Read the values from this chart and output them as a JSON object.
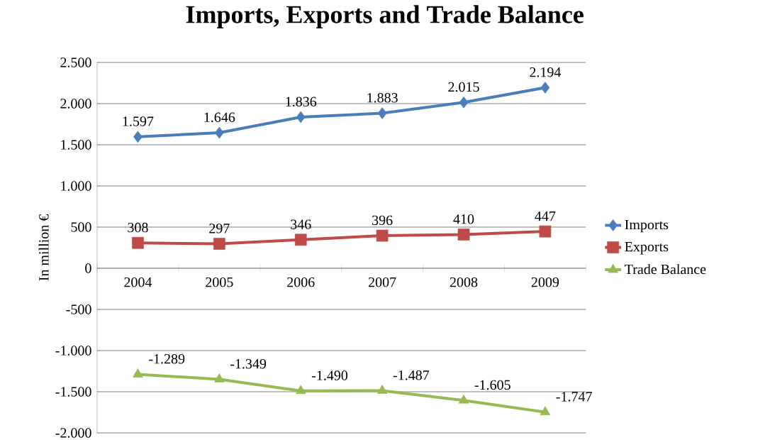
{
  "chart_data": {
    "type": "line",
    "title": "Imports, Exports and Trade Balance",
    "ylabel": "In million €",
    "categories": [
      "2004",
      "2005",
      "2006",
      "2007",
      "2008",
      "2009"
    ],
    "series": [
      {
        "name": "Imports",
        "color": "#4a7ebb",
        "marker": "diamond",
        "values": [
          1597,
          1646,
          1836,
          1883,
          2015,
          2194
        ],
        "value_labels": [
          "1.597",
          "1.646",
          "1.836",
          "1.883",
          "2.015",
          "2.194"
        ]
      },
      {
        "name": "Exports",
        "color": "#be4b48",
        "marker": "square",
        "values": [
          308,
          297,
          346,
          396,
          410,
          447
        ],
        "value_labels": [
          "308",
          "297",
          "346",
          "396",
          "410",
          "447"
        ]
      },
      {
        "name": "Trade Balance",
        "color": "#98b954",
        "marker": "triangle",
        "values": [
          -1289,
          -1349,
          -1490,
          -1487,
          -1605,
          -1747
        ],
        "value_labels": [
          "-1.289",
          "-1.349",
          "-1.490",
          "-1.487",
          "-1.605",
          "-1.747"
        ]
      }
    ],
    "ylim": [
      -2000,
      2500
    ],
    "yticks": [
      {
        "value": -2000,
        "label": "-2.000"
      },
      {
        "value": -1500,
        "label": "-1.500"
      },
      {
        "value": -1000,
        "label": "-1.000"
      },
      {
        "value": -500,
        "label": "-500"
      },
      {
        "value": 0,
        "label": "0"
      },
      {
        "value": 500,
        "label": "500"
      },
      {
        "value": 1000,
        "label": "1.000"
      },
      {
        "value": 1500,
        "label": "1.500"
      },
      {
        "value": 2000,
        "label": "2.000"
      },
      {
        "value": 2500,
        "label": "2.500"
      }
    ],
    "grid": "y",
    "legend": "right",
    "line_style": "solid"
  }
}
